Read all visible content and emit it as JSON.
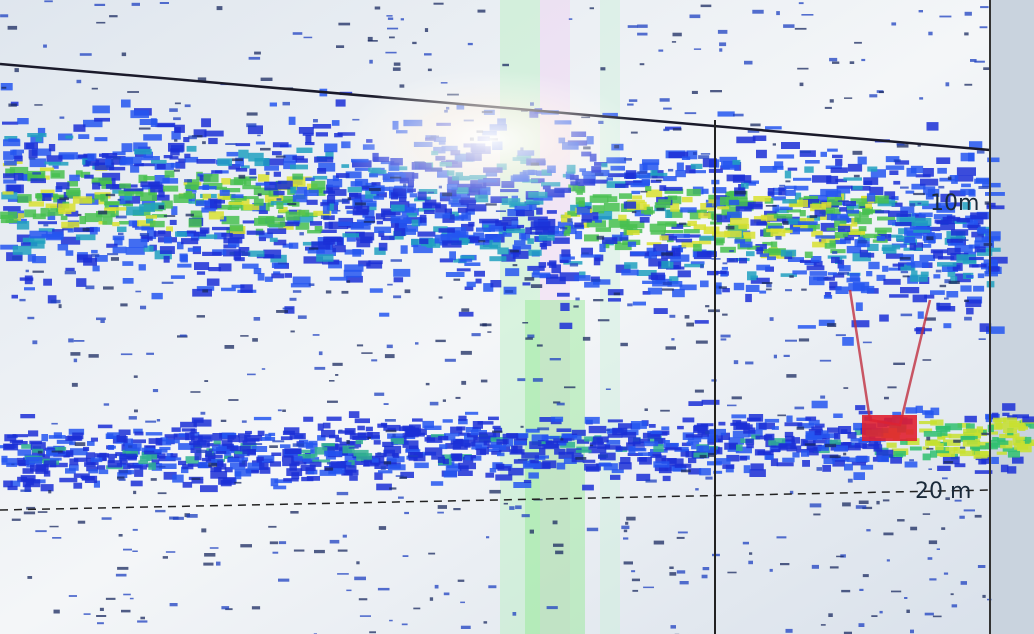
{
  "depth_labels": [
    "10m",
    "20 m"
  ]
}
